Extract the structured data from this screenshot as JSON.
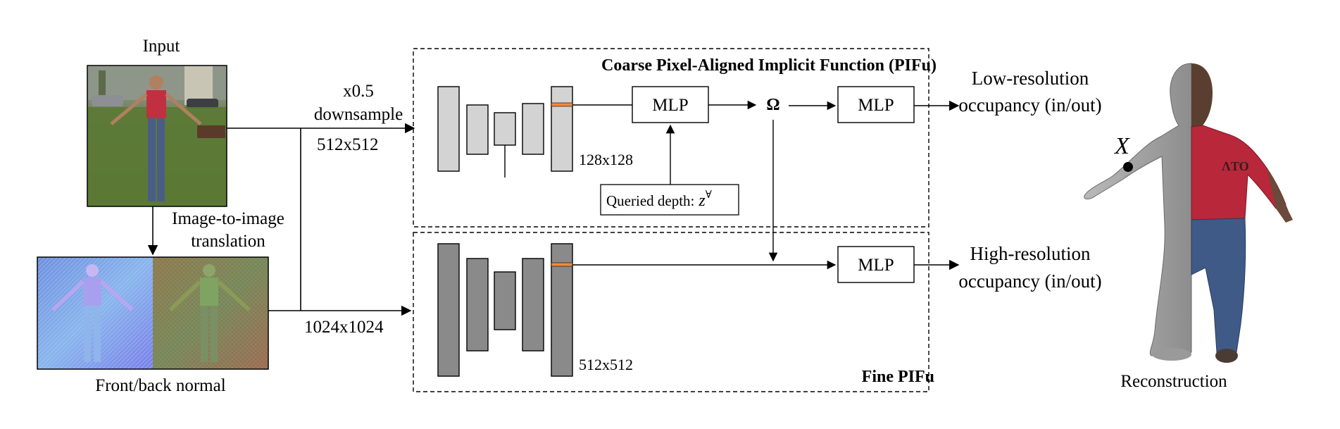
{
  "labels": {
    "input": "Input",
    "downsample_factor": "x0.5",
    "downsample": "downsample",
    "res_coarse": "512x512",
    "res_fine": "1024x1024",
    "img2img_line1": "Image-to-image",
    "img2img_line2": "translation",
    "front_back_normal": "Front/back normal",
    "reconstruction": "Reconstruction"
  },
  "coarse": {
    "title": "Coarse Pixel-Aligned Implicit Function (PIFu)",
    "feature_res": "128x128",
    "mlp1": "MLP",
    "omega": "Ω",
    "mlp2": "MLP",
    "queried_depth": "Queried depth:",
    "depth_symbol": "z",
    "depth_superscript": "∀",
    "output_line1": "Low-resolution",
    "output_line2": "occupancy (in/out)"
  },
  "fine": {
    "title": "Fine PIFu",
    "feature_res": "512x512",
    "mlp": "MLP",
    "output_line1": "High-resolution",
    "output_line2": "occupancy (in/out)"
  },
  "point_label": "X",
  "colors": {
    "coarse_block": "#d3d3d3",
    "fine_block": "#8a8a8a",
    "feature_stripe": "#f08a3c",
    "shirt_red": "#b8283a",
    "jeans_blue": "#3f5a86",
    "grass_green": "#5d7a3a"
  }
}
